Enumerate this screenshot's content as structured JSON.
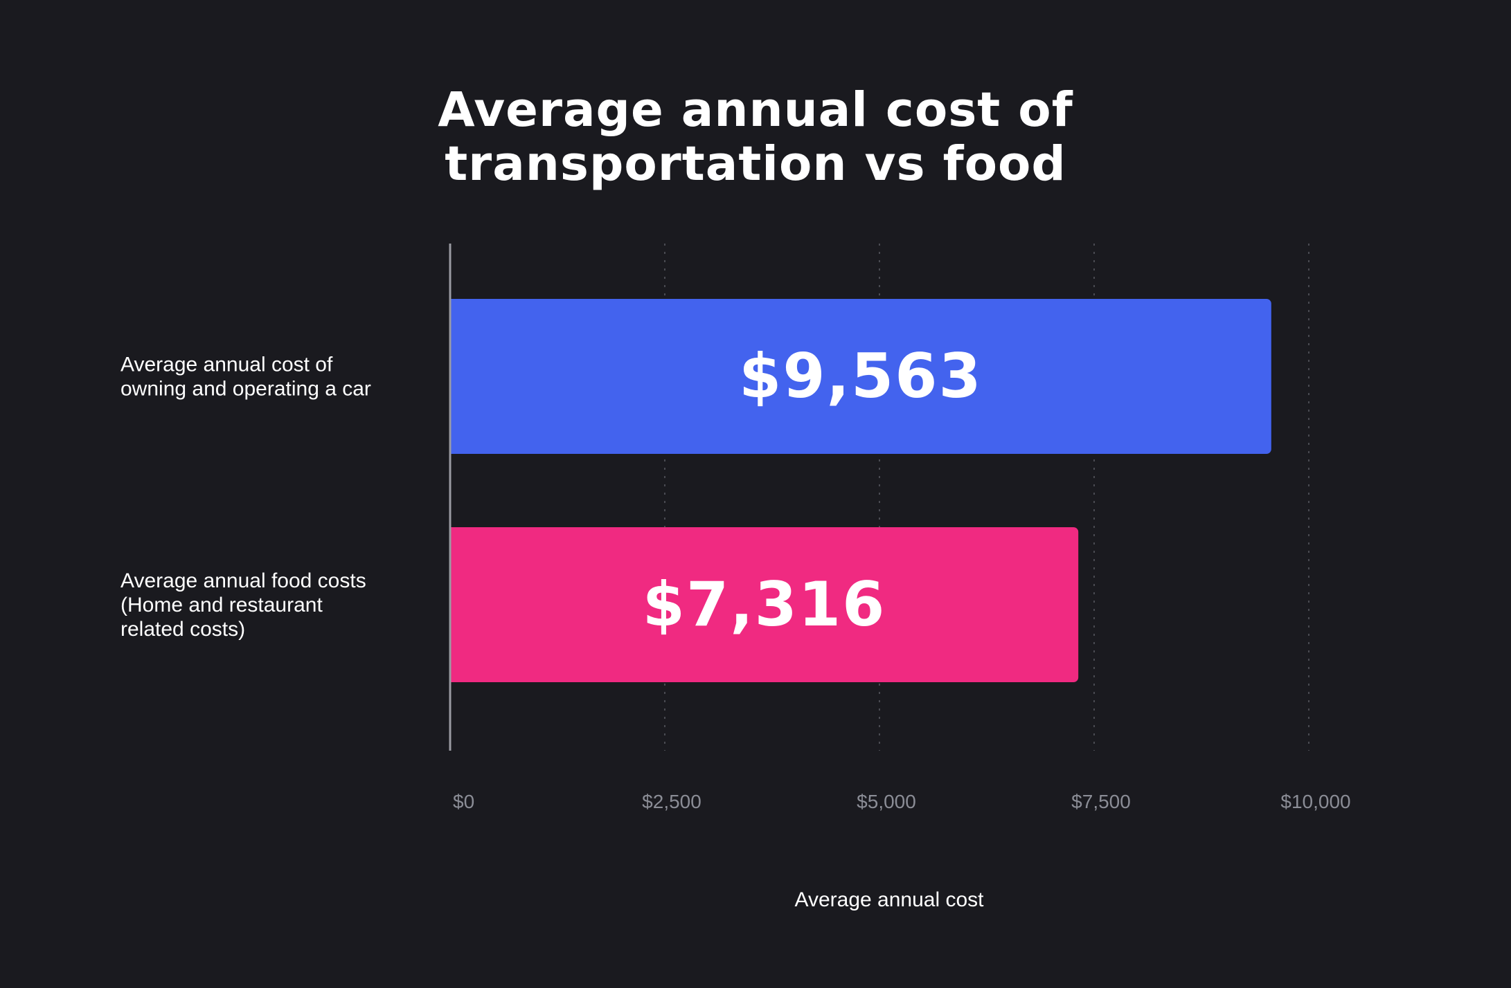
{
  "chart_data": {
    "type": "bar",
    "orientation": "horizontal",
    "title_lines": [
      "Average annual cost of",
      "transportation vs food"
    ],
    "categories": [
      [
        "Average annual cost of",
        "owning and operating a car"
      ],
      [
        "Average annual food costs",
        "(Home and restaurant",
        "related costs)"
      ]
    ],
    "values": [
      9563,
      7316
    ],
    "value_labels": [
      "$9,563",
      "$7,316"
    ],
    "colors": [
      "#4363ee",
      "#f02a81"
    ],
    "xticks": [
      0,
      2500,
      5000,
      7500,
      10000
    ],
    "xtick_labels": [
      "$0",
      "$2,500",
      "$5,000",
      "$7,500",
      "$10,000"
    ],
    "xlabel": "Average annual cost",
    "xlim": [
      0,
      10000
    ],
    "grid": "vertical dotted"
  }
}
